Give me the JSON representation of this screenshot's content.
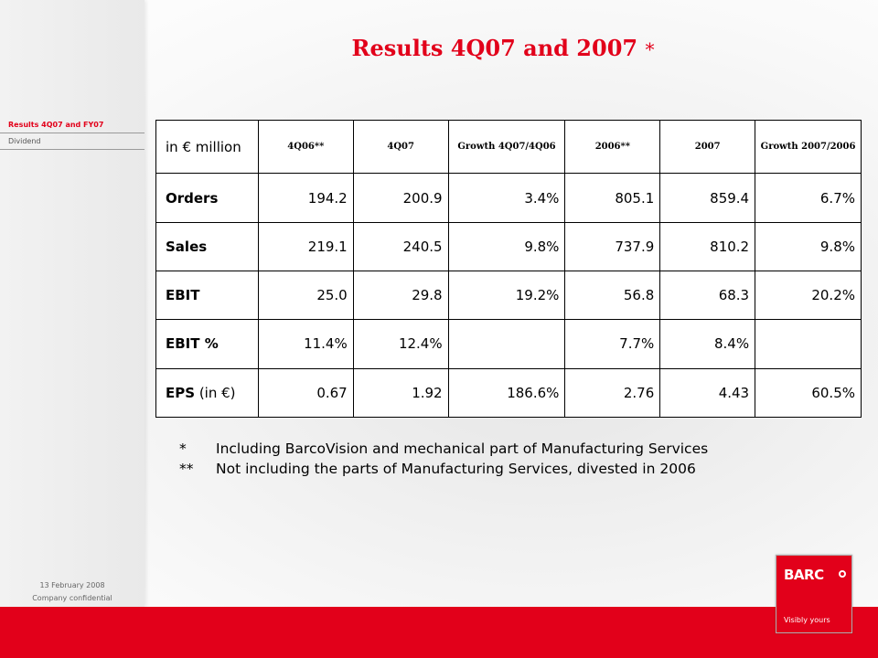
{
  "title": {
    "main": "Results 4Q07 and 2007",
    "mark": "*"
  },
  "sidebar": {
    "items": [
      {
        "label": "Results  4Q07  and FY07",
        "active": true
      },
      {
        "label": "Dividend",
        "active": false
      }
    ],
    "date": "13 February 2008",
    "confidential": "Company confidential"
  },
  "table": {
    "corner": "in € million",
    "headers": [
      "4Q06**",
      "4Q07",
      "Growth 4Q07/4Q06",
      "2006**",
      "2007",
      "Growth 2007/2006"
    ],
    "rows": [
      {
        "label": "Orders",
        "suffix": "",
        "cells": [
          "194.2",
          "200.9",
          "3.4%",
          "805.1",
          "859.4",
          "6.7%"
        ]
      },
      {
        "label": "Sales",
        "suffix": "",
        "cells": [
          "219.1",
          "240.5",
          "9.8%",
          "737.9",
          "810.2",
          "9.8%"
        ]
      },
      {
        "label": "EBIT",
        "suffix": "",
        "cells": [
          "25.0",
          "29.8",
          "19.2%",
          "56.8",
          "68.3",
          "20.2%"
        ]
      },
      {
        "label": "EBIT %",
        "suffix": "",
        "cells": [
          "11.4%",
          "12.4%",
          "",
          "7.7%",
          "8.4%",
          ""
        ]
      },
      {
        "label": "EPS",
        "suffix": " (in €)",
        "cells": [
          "0.67",
          "1.92",
          "186.6%",
          "2.76",
          "4.43",
          "60.5%"
        ]
      }
    ]
  },
  "notes": [
    {
      "mark": "*",
      "text": "Including BarcoVision and mechanical part of Manufacturing Services"
    },
    {
      "mark": "**",
      "text": "Not including the parts of Manufacturing Services, divested in 2006"
    }
  ],
  "logo": {
    "word": "BARC",
    "tagline": "Visibly yours"
  },
  "colors": {
    "brand_red": "#e2001a"
  }
}
